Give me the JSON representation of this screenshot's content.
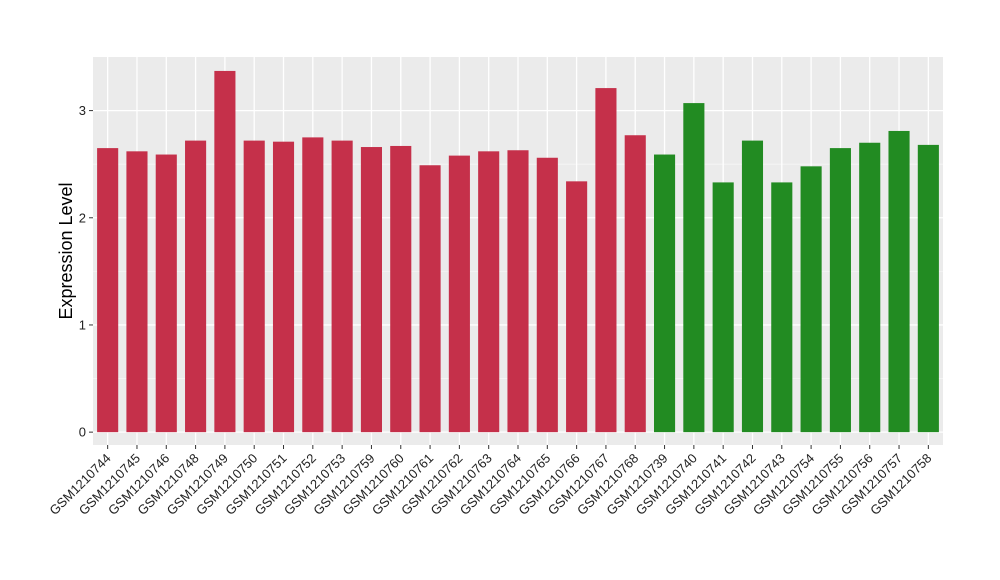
{
  "chart_data": {
    "type": "bar",
    "title": "",
    "xlabel": "",
    "ylabel": "Expression Level",
    "ylim": [
      -0.12,
      3.5
    ],
    "yticks": [
      0,
      1,
      2,
      3
    ],
    "ytick_labels": [
      "0",
      "1",
      "2",
      "3"
    ],
    "grid": true,
    "legend": "none",
    "categories": [
      "GSM1210744",
      "GSM1210745",
      "GSM1210746",
      "GSM1210748",
      "GSM1210749",
      "GSM1210750",
      "GSM1210751",
      "GSM1210752",
      "GSM1210753",
      "GSM1210759",
      "GSM1210760",
      "GSM1210761",
      "GSM1210762",
      "GSM1210763",
      "GSM1210764",
      "GSM1210765",
      "GSM1210766",
      "GSM1210767",
      "GSM1210768",
      "GSM1210739",
      "GSM1210740",
      "GSM1210741",
      "GSM1210742",
      "GSM1210743",
      "GSM1210754",
      "GSM1210755",
      "GSM1210756",
      "GSM1210757",
      "GSM1210758"
    ],
    "values": [
      2.65,
      2.62,
      2.59,
      2.72,
      3.37,
      2.72,
      2.71,
      2.75,
      2.72,
      2.66,
      2.67,
      2.49,
      2.58,
      2.62,
      2.63,
      2.56,
      2.34,
      3.21,
      2.77,
      2.59,
      3.07,
      2.33,
      2.72,
      2.33,
      2.48,
      2.65,
      2.7,
      2.81,
      2.68
    ],
    "groups": [
      "a",
      "a",
      "a",
      "a",
      "a",
      "a",
      "a",
      "a",
      "a",
      "a",
      "a",
      "a",
      "a",
      "a",
      "a",
      "a",
      "a",
      "a",
      "a",
      "b",
      "b",
      "b",
      "b",
      "b",
      "b",
      "b",
      "b",
      "b",
      "b"
    ],
    "colors": {
      "a": "#c5304a",
      "b": "#228b22",
      "panel_background": "#ebebeb",
      "grid_major": "#ffffff",
      "grid_minor": "#f5f5f5"
    }
  }
}
